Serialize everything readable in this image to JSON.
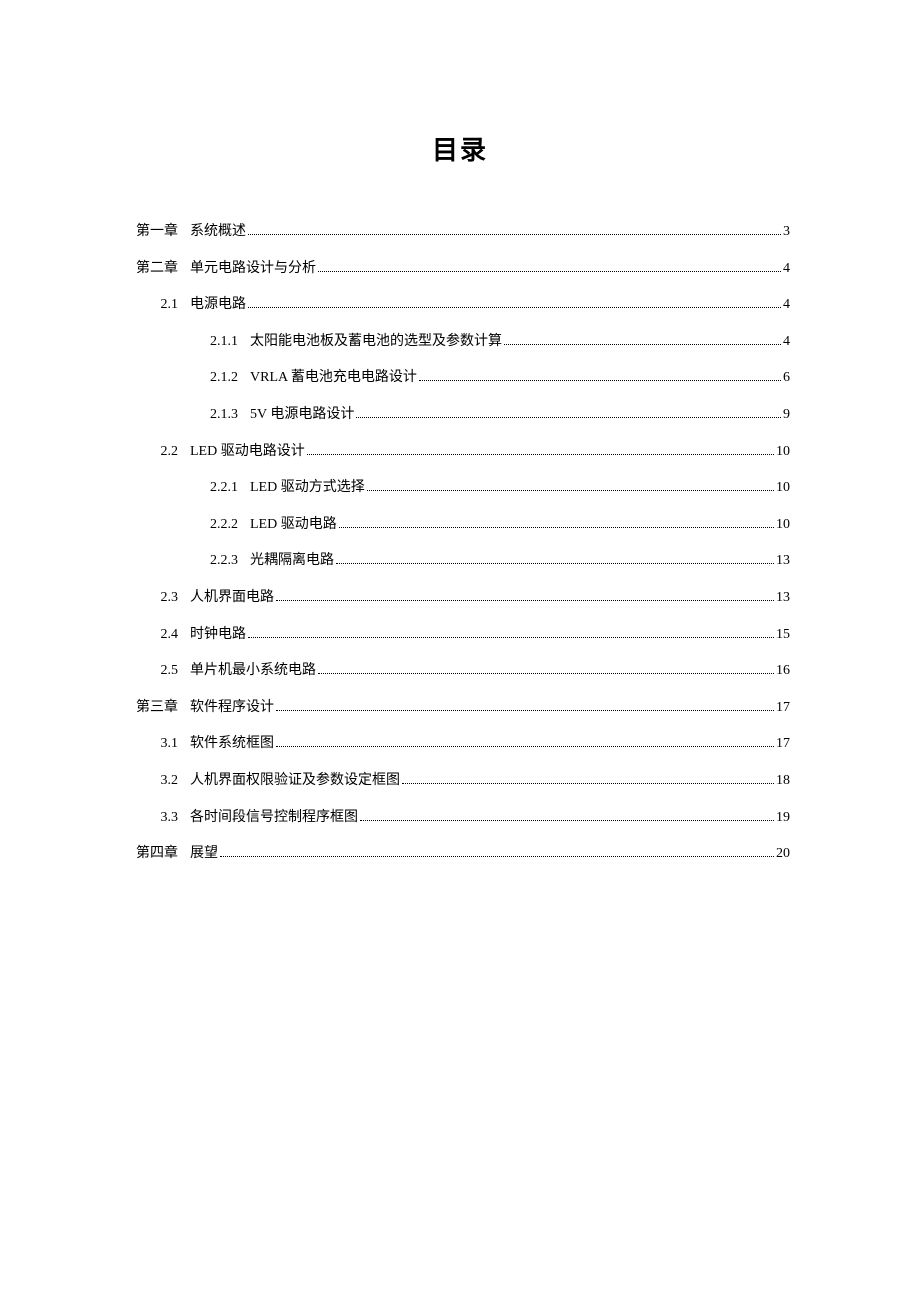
{
  "title": "目录",
  "entries": [
    {
      "level": 1,
      "label": "第一章",
      "text": "系统概述",
      "page": "3"
    },
    {
      "level": 1,
      "label": "第二章",
      "text": "单元电路设计与分析",
      "page": "4"
    },
    {
      "level": 2,
      "label": "2.1",
      "text": "电源电路",
      "page": "4"
    },
    {
      "level": 3,
      "label": "2.1.1",
      "text": "太阳能电池板及蓄电池的选型及参数计算",
      "page": "4"
    },
    {
      "level": 3,
      "label": "2.1.2",
      "text": "VRLA 蓄电池充电电路设计",
      "page": "6"
    },
    {
      "level": 3,
      "label": "2.1.3",
      "text": "5V 电源电路设计",
      "page": "9"
    },
    {
      "level": 2,
      "label": "2.2",
      "text": "LED 驱动电路设计",
      "page": "10"
    },
    {
      "level": 3,
      "label": "2.2.1",
      "text": "LED 驱动方式选择",
      "page": "10"
    },
    {
      "level": 3,
      "label": "2.2.2",
      "text": "LED 驱动电路",
      "page": "10"
    },
    {
      "level": 3,
      "label": "2.2.3",
      "text": "光耦隔离电路",
      "page": "13"
    },
    {
      "level": 2,
      "label": "2.3",
      "text": "人机界面电路",
      "page": "13"
    },
    {
      "level": 2,
      "label": "2.4",
      "text": "时钟电路",
      "page": "15"
    },
    {
      "level": 2,
      "label": "2.5",
      "text": "单片机最小系统电路",
      "page": "16"
    },
    {
      "level": 1,
      "label": "第三章",
      "text": "软件程序设计",
      "page": "17"
    },
    {
      "level": 2,
      "label": "3.1",
      "text": "软件系统框图",
      "page": "17"
    },
    {
      "level": 2,
      "label": "3.2",
      "text": "人机界面权限验证及参数设定框图",
      "page": "18"
    },
    {
      "level": 2,
      "label": "3.3",
      "text": "各时间段信号控制程序框图",
      "page": "19"
    },
    {
      "level": 1,
      "label": "第四章",
      "text": "展望",
      "page": "20"
    }
  ]
}
